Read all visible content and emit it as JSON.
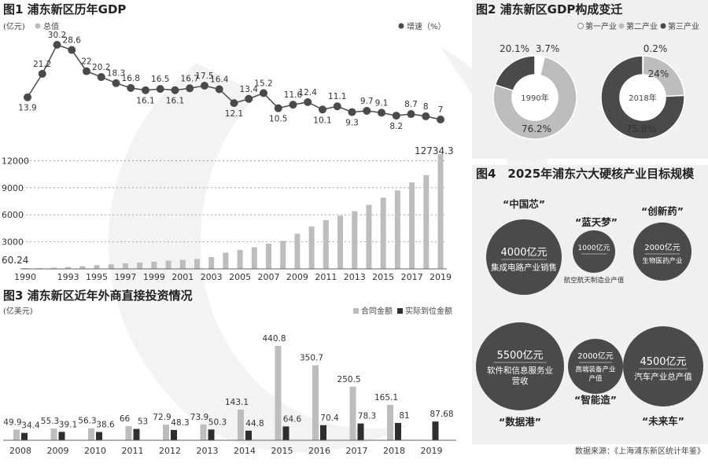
{
  "fig1": {
    "title": "图1 浦东新区历年GDP",
    "unit_left": "(亿元)",
    "legend_total": "总值",
    "legend_growth": "增速（%）",
    "highlight_first": "60.24",
    "highlight_last": "12734.3"
  },
  "fig2": {
    "title": "图2 浦东新区GDP构成变迁",
    "legend": [
      "第一产业",
      "第二产业",
      "第三产业"
    ],
    "donuts": [
      {
        "year": "1990年",
        "primary": 3.7,
        "secondary": 76.2,
        "tertiary": 20.1,
        "labels": {
          "primary": "3.7%",
          "secondary": "76.2%",
          "tertiary": "20.1%"
        }
      },
      {
        "year": "2018年",
        "primary": 0.2,
        "secondary": 24,
        "tertiary": 75.8,
        "labels": {
          "primary": "0.2%",
          "secondary": "24%",
          "tertiary": "75.8%"
        }
      }
    ]
  },
  "fig3": {
    "title": "图3 浦东新区近年外商直接投资情况",
    "unit": "(亿美元)",
    "legend_contract": "合同金额",
    "legend_actual": "实际到位金额"
  },
  "fig4": {
    "title": "图4　2025年浦东六大硬核产业目标规模",
    "bubbles": [
      {
        "quote": "“中国芯”",
        "value": "4000亿元",
        "desc": "集成电路产业销售",
        "desc2": ""
      },
      {
        "quote": "“蓝天梦”",
        "value": "1000亿元",
        "desc": "航空航天制造业产值",
        "desc2": ""
      },
      {
        "quote": "“创新药”",
        "value": "2000亿元",
        "desc": "生物医药产业",
        "desc2": ""
      },
      {
        "quote": "“数据港”",
        "value": "5500亿元",
        "desc": "软件和信息服务业",
        "desc2": "营收"
      },
      {
        "quote": "“智能造”",
        "value": "2000亿元",
        "desc": "高端装备产业",
        "desc2": "产值"
      },
      {
        "quote": "“未来车”",
        "value": "4500亿元",
        "desc": "汽车产业总产值",
        "desc2": ""
      }
    ]
  },
  "source": "数据来源：《上海浦东新区统计年鉴》",
  "colors": {
    "dark": "#4a4a4a",
    "gray": "#bdbdbd",
    "light": "#ffffff",
    "panel": "#efefef"
  },
  "chart_data": [
    {
      "type": "line",
      "title": "图1 浦东新区历年GDP",
      "series_name": "增速（%）",
      "values": [
        13.9,
        21.2,
        30.2,
        28.6,
        22,
        20.2,
        18.3,
        16.8,
        16.1,
        16.5,
        16.1,
        16.7,
        17.5,
        16.4,
        12.1,
        13.4,
        15.2,
        10.5,
        11.6,
        12.4,
        10.1,
        11.1,
        9.3,
        9.7,
        9.1,
        8.2,
        8.7,
        8,
        7
      ]
    },
    {
      "type": "bar",
      "title": "图1 浦东新区历年GDP",
      "series_name": "总值",
      "ylabel": "(亿元)",
      "categories": [
        "1990",
        "1991",
        "1992",
        "1993",
        "1994",
        "1995",
        "1996",
        "1997",
        "1998",
        "1999",
        "2000",
        "2001",
        "2002",
        "2003",
        "2004",
        "2005",
        "2006",
        "2007",
        "2008",
        "2009",
        "2010",
        "2011",
        "2012",
        "2013",
        "2014",
        "2015",
        "2016",
        "2017",
        "2018",
        "2019"
      ],
      "x_tick_labels": [
        "1990",
        "1993",
        "1995",
        "1997",
        "1999",
        "2001",
        "2003",
        "2005",
        "2007",
        "2009",
        "2011",
        "2013",
        "2015",
        "2017",
        "2019"
      ],
      "y_ticks": [
        3000,
        6000,
        9000,
        12000
      ],
      "ylim": [
        0,
        13000
      ],
      "values": [
        60.24,
        85,
        130,
        200,
        290,
        420,
        500,
        610,
        700,
        800,
        920,
        1000,
        1100,
        1300,
        1800,
        2100,
        2400,
        2800,
        3100,
        3900,
        4700,
        5400,
        5900,
        6400,
        7100,
        7900,
        8700,
        9600,
        10400,
        12734.3
      ]
    },
    {
      "type": "bar",
      "title": "图3 浦东新区近年外商直接投资情况",
      "ylabel": "(亿美元)",
      "categories": [
        "2008",
        "2009",
        "2010",
        "2011",
        "2012",
        "2013",
        "2014",
        "2015",
        "2016",
        "2017",
        "2018",
        "2019"
      ],
      "series": [
        {
          "name": "合同金额",
          "values": [
            49.9,
            55.3,
            56.3,
            66,
            72.9,
            73.9,
            143.1,
            440.8,
            350.7,
            250.5,
            165.1,
            null
          ]
        },
        {
          "name": "实际到位金额",
          "values": [
            34.4,
            39.1,
            38.6,
            53,
            48.3,
            50.3,
            44.8,
            64.6,
            70.4,
            78.3,
            81,
            87.68
          ]
        }
      ]
    }
  ]
}
